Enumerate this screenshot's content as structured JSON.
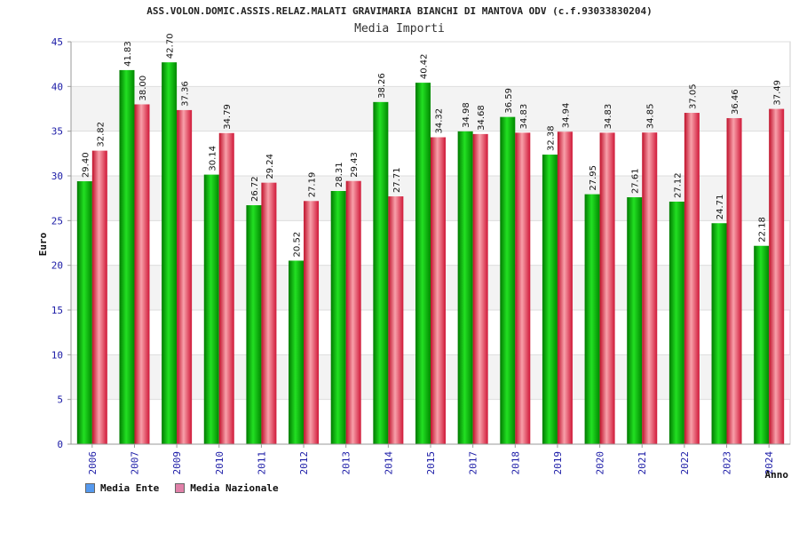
{
  "header": {
    "title": "ASS.VOLON.DOMIC.ASSIS.RELAZ.MALATI GRAVIMARIA BIANCHI DI MANTOVA ODV (c.f.93033830204)",
    "subtitle": "Media Importi"
  },
  "chart_data": {
    "type": "bar",
    "title": "Media Importi",
    "xlabel": "Anno",
    "ylabel": "Euro",
    "ylim": [
      0,
      45
    ],
    "yticks": [
      0,
      5,
      10,
      15,
      20,
      25,
      30,
      35,
      40,
      45
    ],
    "grid": true,
    "legend_position": "bottom-left",
    "categories": [
      "2006",
      "2007",
      "2009",
      "2010",
      "2011",
      "2012",
      "2013",
      "2014",
      "2015",
      "2017",
      "2018",
      "2019",
      "2020",
      "2021",
      "2022",
      "2023",
      "2024"
    ],
    "series": [
      {
        "name": "Media Ente",
        "color": "#00b000",
        "legend_color": "#5599ee",
        "values": [
          29.4,
          41.83,
          42.7,
          30.14,
          26.72,
          20.52,
          28.31,
          38.26,
          40.42,
          34.98,
          36.59,
          32.38,
          27.95,
          27.61,
          27.12,
          24.71,
          22.18
        ],
        "labels": [
          "29.40",
          "41.83",
          "42.70",
          "30.14",
          "26.72",
          "20.52",
          "28.31",
          "38.26",
          "40.42",
          "34.98",
          "36.59",
          "32.38",
          "27.95",
          "27.61",
          "27.12",
          "24.71",
          "22.18"
        ]
      },
      {
        "name": "Media Nazionale",
        "color": "#e8304a",
        "legend_color": "#e080a8",
        "values": [
          32.82,
          38.0,
          37.36,
          34.79,
          29.24,
          27.19,
          29.43,
          27.71,
          34.32,
          34.68,
          34.83,
          34.94,
          34.83,
          34.85,
          37.05,
          36.46,
          37.49
        ],
        "labels": [
          "32.82",
          "38.00",
          "37.36",
          "34.79",
          "29.24",
          "27.19",
          "29.43",
          "27.71",
          "34.32",
          "34.68",
          "34.83",
          "34.94",
          "34.83",
          "34.85",
          "37.05",
          "36.46",
          "37.49"
        ]
      }
    ]
  }
}
